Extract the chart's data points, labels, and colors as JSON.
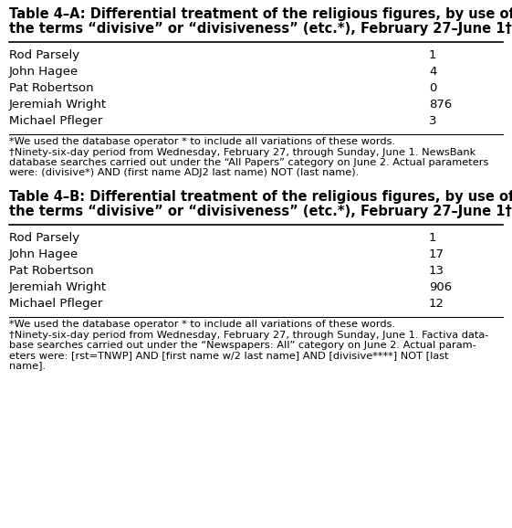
{
  "table_a_title_line1": "Table 4–A: Differential treatment of the religious figures, by use of",
  "table_a_title_line2": "the terms “divisive” or “divisiveness” (etc.*), February 27–June 1†",
  "table_b_title_line1": "Table 4–B: Differential treatment of the religious figures, by use of",
  "table_b_title_line2": "the terms “divisive” or “divisiveness” (etc.*), February 27–June 1†",
  "rows": [
    "Rod Parsely",
    "John Hagee",
    "Pat Robertson",
    "Jeremiah Wright",
    "Michael Pfleger"
  ],
  "values_a": [
    "1",
    "4",
    "0",
    "876",
    "3"
  ],
  "values_b": [
    "1",
    "17",
    "13",
    "906",
    "12"
  ],
  "footnote_a_star": "*We used the database operator * to include all variations of these words.",
  "footnote_a_dagger_line1": "†Ninety-six-day period from Wednesday, February 27, through Sunday, June 1. NewsBank",
  "footnote_a_dagger_line2": "database searches carried out under the “All Papers” category on June 2. Actual parameters",
  "footnote_a_dagger_line3": "were: (divisive*) AND (first name ADJ2 last name) NOT (last name).",
  "footnote_b_star": "*We used the database operator * to include all variations of these words.",
  "footnote_b_dagger_line1": "†Ninety-six-day period from Wednesday, February 27, through Sunday, June 1. Factiva data-",
  "footnote_b_dagger_line2": "base searches carried out under the “Newspapers: All” category on June 2. Actual param-",
  "footnote_b_dagger_line3": "eters were: [rst=TNWP] AND [first name w/2 last name] AND [divisive****] NOT [last",
  "footnote_b_dagger_line4": "name].",
  "bg_color": "#ffffff",
  "text_color": "#000000",
  "title_fontsize": 10.5,
  "body_fontsize": 9.5,
  "footnote_fontsize": 8.2
}
